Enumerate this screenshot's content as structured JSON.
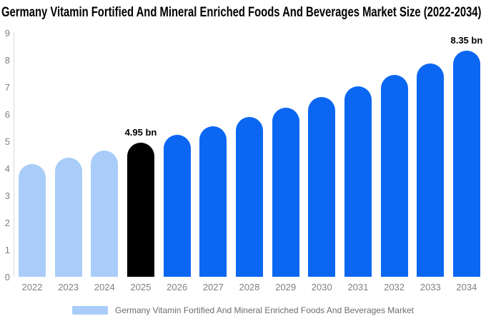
{
  "title": "Germany Vitamin Fortified And Mineral Enriched Foods And Beverages Market Size (2022-2034)",
  "legend": {
    "label": "Germany Vitamin Fortified And Mineral Enriched Foods And Beverages Market"
  },
  "chart_data": {
    "type": "bar",
    "title": "Germany Vitamin Fortified And Mineral Enriched Foods And Beverages Market Size (2022-2034)",
    "categories": [
      "2022",
      "2023",
      "2024",
      "2025",
      "2026",
      "2027",
      "2028",
      "2029",
      "2030",
      "2031",
      "2032",
      "2033",
      "2034"
    ],
    "values": [
      4.15,
      4.4,
      4.67,
      4.95,
      5.25,
      5.56,
      5.9,
      6.25,
      6.62,
      7.02,
      7.44,
      7.88,
      8.35
    ],
    "unit": "bn",
    "xlabel": "",
    "ylabel": "",
    "ylim": [
      0,
      9
    ],
    "yticks": [
      0,
      1,
      2,
      3,
      4,
      5,
      6,
      7,
      8,
      9
    ],
    "grid": false,
    "legend_position": "bottom",
    "legend_entries": [
      "Germany Vitamin Fortified And Mineral Enriched Foods And Beverages Market"
    ],
    "annotations": [
      {
        "category": "2025",
        "text": "4.95 bn"
      },
      {
        "category": "2034",
        "text": "8.35 bn"
      }
    ],
    "series_colors": {
      "historical": "#A9CDF8",
      "current": "#000000",
      "forecast": "#0B67F2"
    },
    "color_keys": [
      "historical",
      "historical",
      "historical",
      "current",
      "forecast",
      "forecast",
      "forecast",
      "forecast",
      "forecast",
      "forecast",
      "forecast",
      "forecast",
      "forecast"
    ]
  },
  "colors": {
    "background": "#FFFFFF",
    "axis_line": "#D8D8D8",
    "tick_text": "#808080",
    "legend_text": "#6D6D6D",
    "annotation_text": "#000000"
  }
}
